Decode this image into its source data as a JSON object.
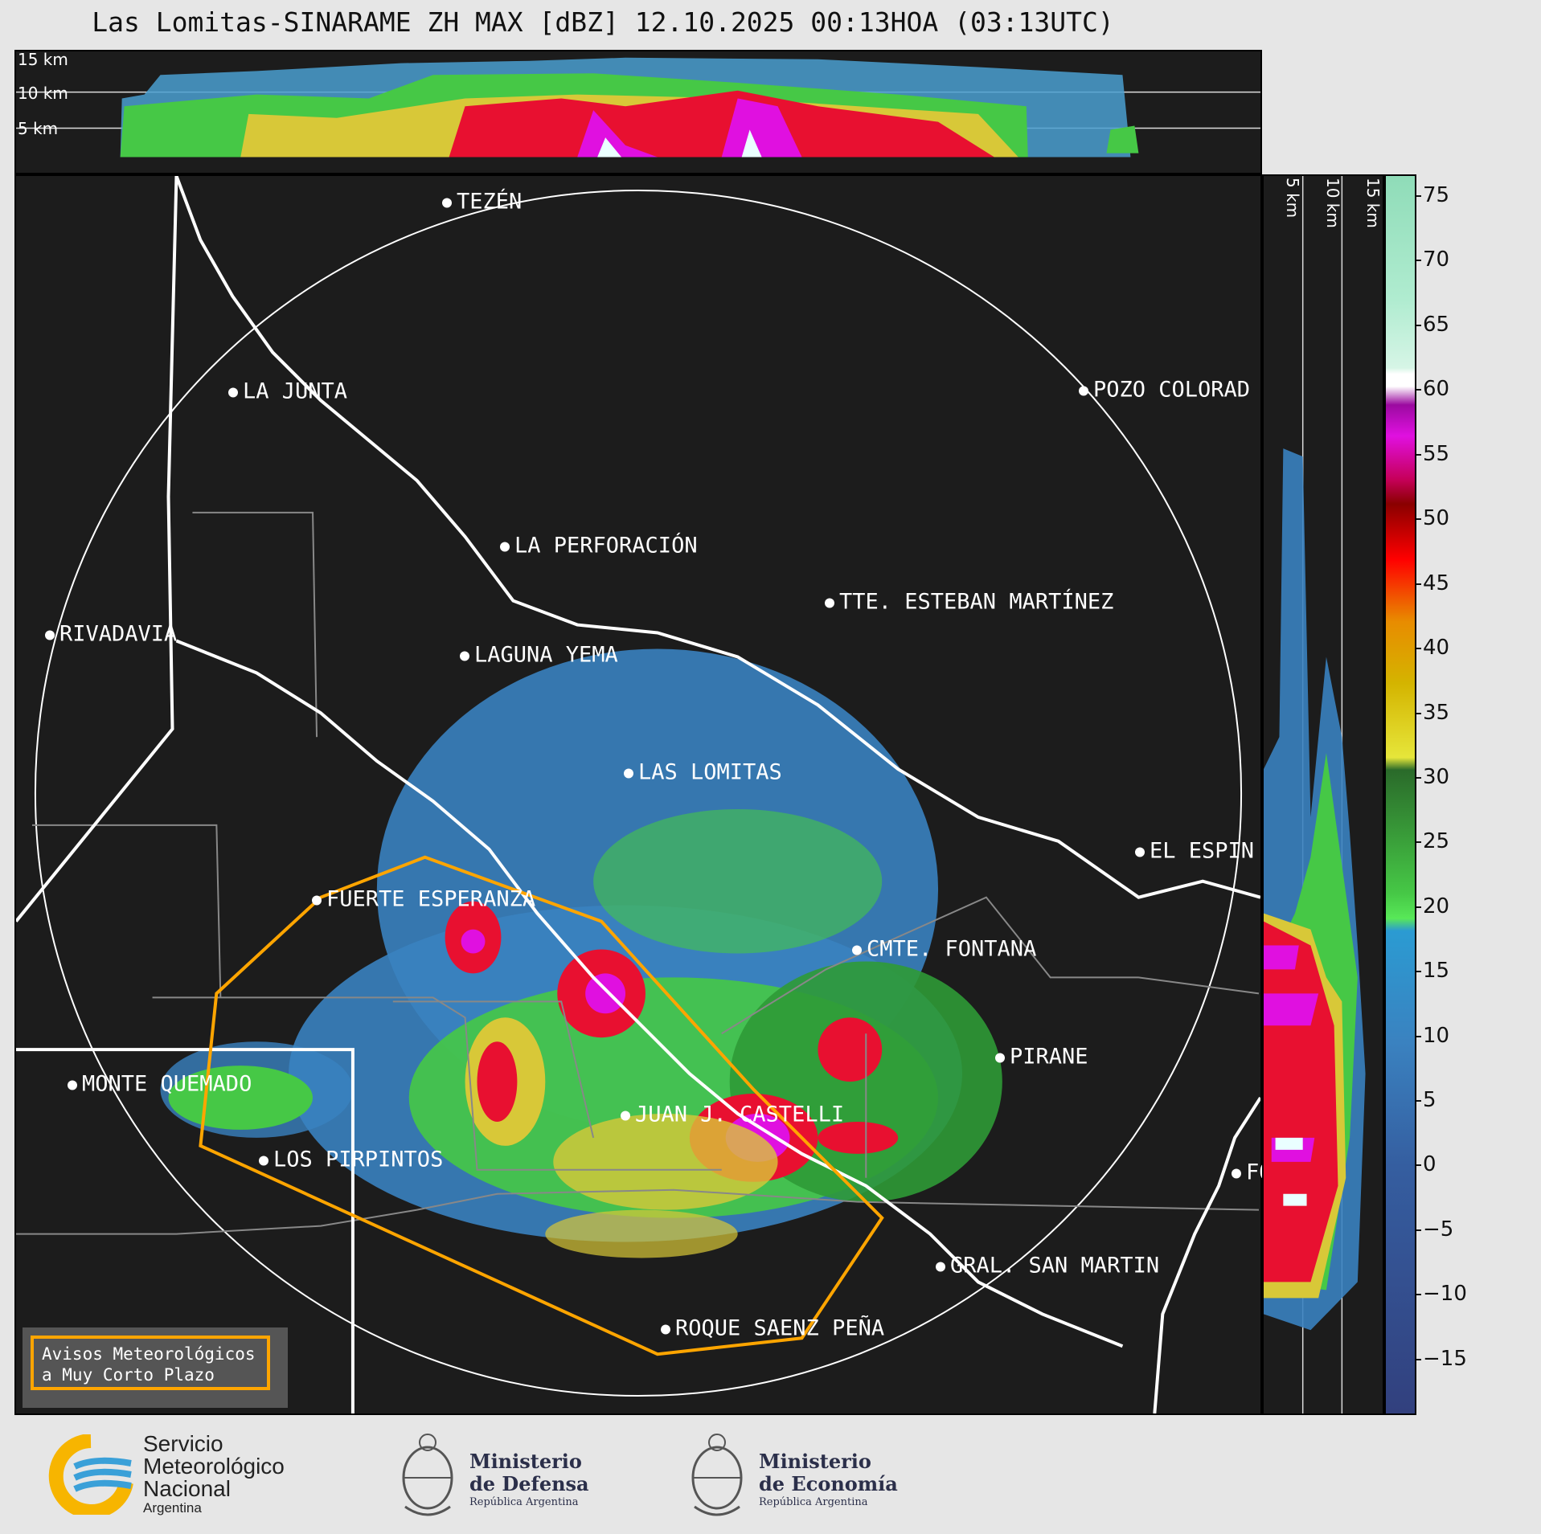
{
  "title": "Las Lomitas-SINARAME ZH MAX [dBZ] 12.10.2025 00:13HOA (03:13UTC)",
  "top_panel": {
    "height_labels": [
      "15 km",
      "10 km",
      "5 km"
    ]
  },
  "side_panel": {
    "height_labels": [
      "5 km",
      "10 km",
      "15 km"
    ]
  },
  "colorbar": {
    "ticks": [
      "75",
      "70",
      "65",
      "60",
      "55",
      "50",
      "45",
      "40",
      "35",
      "30",
      "25",
      "20",
      "15",
      "10",
      "5",
      "0",
      "−5",
      "−10",
      "−15"
    ]
  },
  "cities": [
    {
      "name": "TEZÉN"
    },
    {
      "name": "LA JUNTA"
    },
    {
      "name": "POZO COLORAD"
    },
    {
      "name": "LA PERFORACIÓN"
    },
    {
      "name": "TTE. ESTEBAN MARTÍNEZ"
    },
    {
      "name": "RIVADAVIA"
    },
    {
      "name": "LAGUNA YEMA"
    },
    {
      "name": "LAS LOMITAS"
    },
    {
      "name": "EL ESPIN"
    },
    {
      "name": "FUERTE ESPERANZA"
    },
    {
      "name": "CMTE. FONTANA"
    },
    {
      "name": "PIRANE"
    },
    {
      "name": "MONTE QUEMADO"
    },
    {
      "name": "JUAN J. CASTELLI"
    },
    {
      "name": "LOS PIRPINTOS"
    },
    {
      "name": "FO"
    },
    {
      "name": "GRAL. SAN MARTIN"
    },
    {
      "name": "ROQUE SAENZ PEÑA"
    }
  ],
  "legend": {
    "line1": "Avisos Meteorológicos",
    "line2": "a Muy Corto Plazo"
  },
  "footer": {
    "smn": {
      "line1": "Servicio",
      "line2": "Meteorológico",
      "line3": "Nacional",
      "line4": "Argentina"
    },
    "defensa": {
      "line1": "Ministerio",
      "line2": "de Defensa",
      "line3": "República Argentina"
    },
    "economia": {
      "line1": "Ministerio",
      "line2": "de Economía",
      "line3": "República Argentina"
    }
  },
  "colors": {
    "warning": "#ffa500",
    "background": "#1c1c1c",
    "border": "#ffffff"
  }
}
